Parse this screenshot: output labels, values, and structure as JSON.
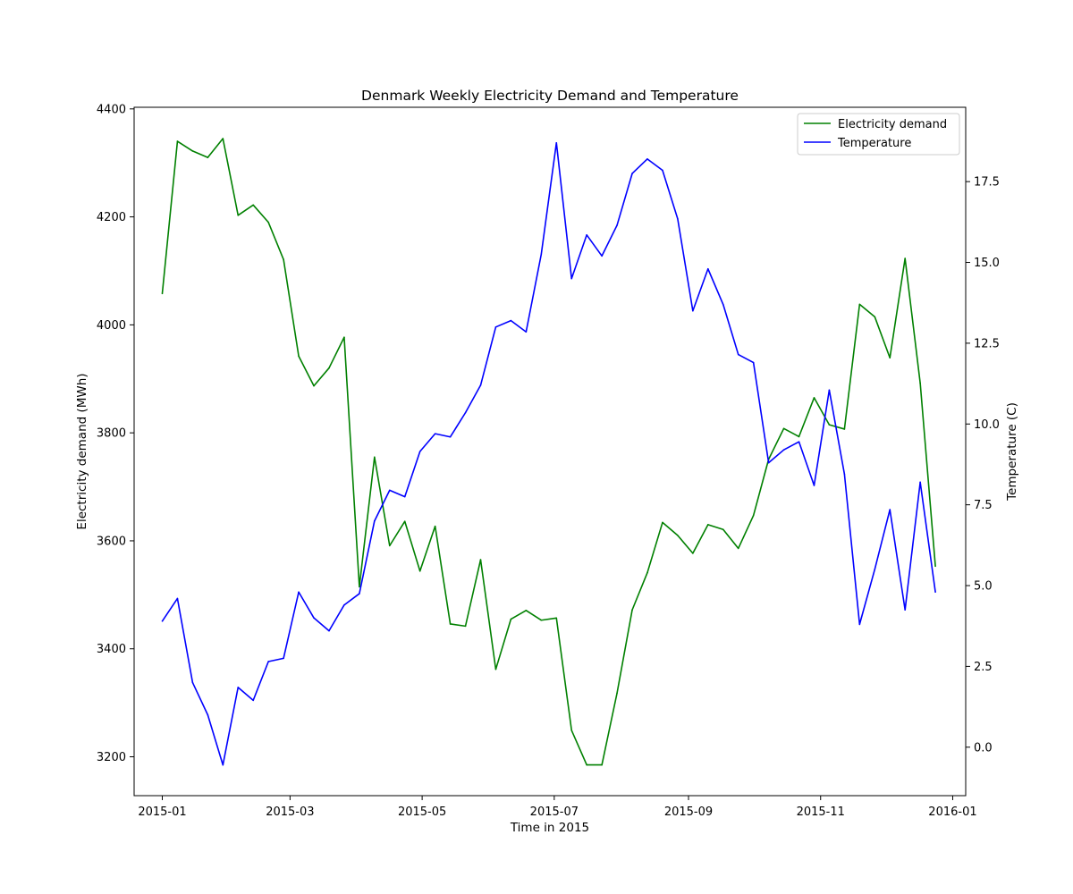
{
  "chart_data": {
    "type": "line",
    "title": "Denmark Weekly Electricity Demand and Temperature",
    "xlabel": "Time in 2015",
    "ylabel_left": "Electricity demand (MWh)",
    "ylabel_right": "Temperature (C)",
    "xlim": [
      "2014-12-19",
      "2016-01-07"
    ],
    "xticks": [
      {
        "date": "2015-01-01",
        "label": "2015-01"
      },
      {
        "date": "2015-03-01",
        "label": "2015-03"
      },
      {
        "date": "2015-05-01",
        "label": "2015-05"
      },
      {
        "date": "2015-07-01",
        "label": "2015-07"
      },
      {
        "date": "2015-09-01",
        "label": "2015-09"
      },
      {
        "date": "2015-11-01",
        "label": "2015-11"
      },
      {
        "date": "2016-01-01",
        "label": "2016-01"
      }
    ],
    "ylim_left": [
      3128,
      4403
    ],
    "yticks_left": [
      3200,
      3400,
      3600,
      3800,
      4000,
      4200,
      4400
    ],
    "ylim_right": [
      -1.5,
      19.8
    ],
    "yticks_right": [
      0.0,
      2.5,
      5.0,
      7.5,
      10.0,
      12.5,
      15.0,
      17.5
    ],
    "legend_position": "top-right",
    "x": [
      "2015-01-01",
      "2015-01-08",
      "2015-01-15",
      "2015-01-22",
      "2015-01-29",
      "2015-02-05",
      "2015-02-12",
      "2015-02-19",
      "2015-02-26",
      "2015-03-05",
      "2015-03-12",
      "2015-03-19",
      "2015-03-26",
      "2015-04-02",
      "2015-04-09",
      "2015-04-16",
      "2015-04-23",
      "2015-04-30",
      "2015-05-07",
      "2015-05-14",
      "2015-05-21",
      "2015-05-28",
      "2015-06-04",
      "2015-06-11",
      "2015-06-18",
      "2015-06-25",
      "2015-07-02",
      "2015-07-09",
      "2015-07-16",
      "2015-07-23",
      "2015-07-30",
      "2015-08-06",
      "2015-08-13",
      "2015-08-20",
      "2015-08-27",
      "2015-09-03",
      "2015-09-10",
      "2015-09-17",
      "2015-09-24",
      "2015-10-01",
      "2015-10-08",
      "2015-10-15",
      "2015-10-22",
      "2015-10-29",
      "2015-11-05",
      "2015-11-12",
      "2015-11-19",
      "2015-11-26",
      "2015-12-03",
      "2015-12-10",
      "2015-12-17",
      "2015-12-24"
    ],
    "series": [
      {
        "name": "Electricity demand",
        "axis": "left",
        "color": "#008000",
        "values": [
          4058,
          4340,
          4322,
          4310,
          4345,
          4203,
          4222,
          4190,
          4121,
          3942,
          3887,
          3920,
          3977,
          3515,
          3755,
          3591,
          3636,
          3544,
          3627,
          3446,
          3442,
          3565,
          3362,
          3455,
          3471,
          3453,
          3457,
          3249,
          3185,
          3185,
          3318,
          3472,
          3541,
          3634,
          3610,
          3577,
          3630,
          3621,
          3586,
          3647,
          3751,
          3808,
          3793,
          3865,
          3815,
          3807,
          4038,
          4015,
          3939,
          4123,
          3892,
          3553
        ]
      },
      {
        "name": "Temperature",
        "axis": "right",
        "color": "#0000ff",
        "values": [
          3.9,
          4.6,
          2.0,
          1.0,
          -0.55,
          1.85,
          1.45,
          2.65,
          2.75,
          4.8,
          4.0,
          3.6,
          4.4,
          4.75,
          7.0,
          7.95,
          7.75,
          9.15,
          9.7,
          9.6,
          10.35,
          11.2,
          13.0,
          13.2,
          12.85,
          15.25,
          18.7,
          14.5,
          15.85,
          15.2,
          16.15,
          17.75,
          18.2,
          17.85,
          16.35,
          13.5,
          14.8,
          13.7,
          12.15,
          11.9,
          8.8,
          9.2,
          9.45,
          8.1,
          11.05,
          8.45,
          3.8,
          5.5,
          7.35,
          4.25,
          8.2,
          4.8
        ]
      }
    ]
  }
}
